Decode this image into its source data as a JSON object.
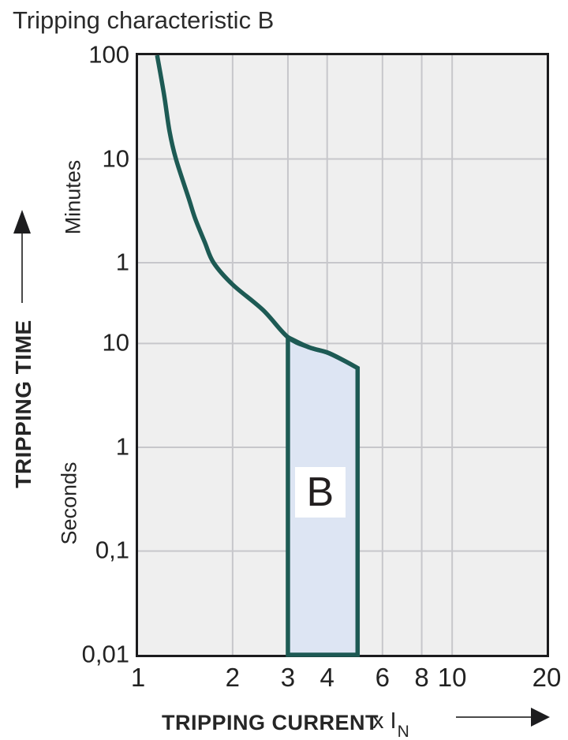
{
  "title": "Tripping characteristic B",
  "y_axis": {
    "label": "TRIPPING TIME",
    "unit_top": "Minutes",
    "unit_bottom": "Seconds",
    "arrow_icon": "up-arrow"
  },
  "x_axis": {
    "label": "TRIPPING CURRENT",
    "multiplier_prefix": "x I",
    "multiplier_sub": "N",
    "arrow_icon": "right-arrow"
  },
  "colors": {
    "curve": "#1d5a54",
    "band_fill": "#dde5f3",
    "plot_bg": "#efefef",
    "gridline": "#c7c7cb",
    "plot_border": "#1b1b1d",
    "text": "#262626",
    "arrow_line": "#4a4a4a",
    "arrow_head": "#1d1d1f"
  },
  "chart_data": {
    "type": "line",
    "title": "Tripping characteristic B",
    "xlabel": "TRIPPING CURRENT x IN",
    "ylabel": "TRIPPING TIME",
    "x_scale": "log",
    "y_scale": "log",
    "x_range": [
      1,
      20
    ],
    "y_range_seconds": [
      0.01,
      6000
    ],
    "grid": true,
    "x_ticks": [
      {
        "label": "1",
        "value": 1
      },
      {
        "label": "2",
        "value": 2
      },
      {
        "label": "3",
        "value": 3
      },
      {
        "label": "4",
        "value": 4
      },
      {
        "label": "6",
        "value": 6
      },
      {
        "label": "8",
        "value": 8
      },
      {
        "label": "10",
        "value": 10
      },
      {
        "label": "20",
        "value": 20
      }
    ],
    "y_ticks": [
      {
        "label": "100",
        "seconds": 6000,
        "unit": "minutes"
      },
      {
        "label": "10",
        "seconds": 600,
        "unit": "minutes"
      },
      {
        "label": "1",
        "seconds": 60,
        "unit": "minutes"
      },
      {
        "label": "10",
        "seconds": 10,
        "unit": "seconds"
      },
      {
        "label": "1",
        "seconds": 1,
        "unit": "seconds"
      },
      {
        "label": "0,1",
        "seconds": 0.1,
        "unit": "seconds"
      },
      {
        "label": "0,01",
        "seconds": 0.01,
        "unit": "seconds"
      }
    ],
    "x_gridlines": [
      2,
      3,
      4,
      6,
      8,
      10
    ],
    "y_gridlines_seconds": [
      600,
      60,
      10,
      1,
      0.1
    ],
    "curve": {
      "name": "tripping-limit-curve",
      "points_multiple_seconds": [
        [
          1.15,
          6000
        ],
        [
          1.21,
          2500
        ],
        [
          1.26,
          1100
        ],
        [
          1.32,
          600
        ],
        [
          1.45,
          250
        ],
        [
          1.52,
          160
        ],
        [
          1.63,
          95
        ],
        [
          1.74,
          60
        ],
        [
          2.0,
          37
        ],
        [
          2.5,
          21
        ],
        [
          3.0,
          11.5
        ],
        [
          3.5,
          9.2
        ],
        [
          4.0,
          8.2
        ],
        [
          4.5,
          6.9
        ],
        [
          5.0,
          5.8
        ]
      ]
    },
    "band": {
      "label": "B",
      "x_from": 3,
      "x_to": 5,
      "bottom_seconds": 0.01,
      "top_points_multiple_seconds": [
        [
          3.0,
          11.5
        ],
        [
          3.5,
          9.2
        ],
        [
          4.0,
          8.2
        ],
        [
          4.5,
          6.9
        ],
        [
          5.0,
          5.8
        ]
      ],
      "label_pos": {
        "x": 3.8,
        "seconds": 0.37
      }
    }
  }
}
